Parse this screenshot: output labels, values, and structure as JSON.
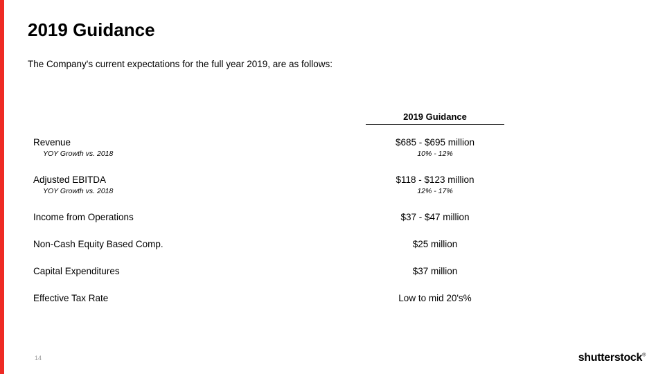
{
  "title": "2019 Guidance",
  "subtitle": "The Company's current expectations for the full year 2019, are as follows:",
  "column_header": "2019 Guidance",
  "rows": [
    {
      "label": "Revenue",
      "sublabel": "YOY Growth vs. 2018",
      "value": "$685 - $695 million",
      "subvalue": "10% - 12%"
    },
    {
      "label": "Adjusted EBITDA",
      "sublabel": "YOY Growth vs. 2018",
      "value": "$118 -  $123 million",
      "subvalue": "12% - 17%"
    },
    {
      "label": "Income from Operations",
      "value": "$37 - $47 million"
    },
    {
      "label": "Non-Cash Equity Based Comp.",
      "value": "$25 million"
    },
    {
      "label": "Capital Expenditures",
      "value": "$37 million"
    },
    {
      "label": "Effective Tax Rate",
      "value": "Low to mid 20's%"
    }
  ],
  "page_number": "14",
  "logo_text": "shutterstock",
  "colors": {
    "accent": "#ee2a24",
    "text": "#000000",
    "background": "#ffffff",
    "page_num": "#9a9a9a"
  }
}
